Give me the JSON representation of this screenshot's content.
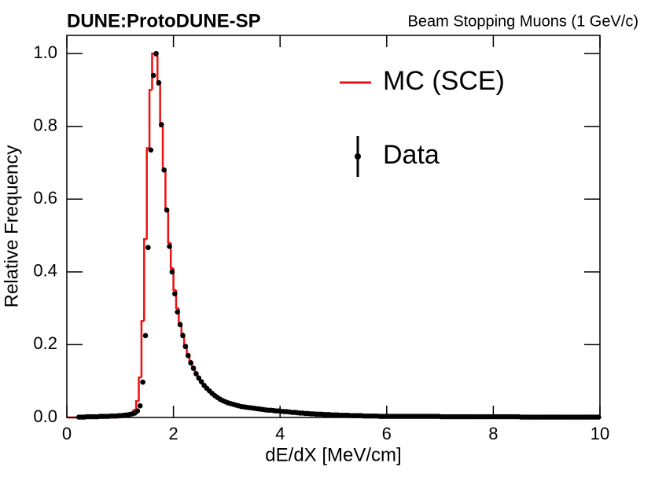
{
  "chart_data": {
    "type": "histogram",
    "title": "DUNE:ProtoDUNE-SP",
    "subtitle": "Beam Stopping Muons (1 GeV/c)",
    "x_label": "dE/dX [MeV/cm]",
    "y_label": "Relative Frequency",
    "xlim": [
      0,
      10
    ],
    "ylim": [
      0,
      1.05
    ],
    "xticks": [
      0,
      2,
      4,
      6,
      8,
      10
    ],
    "yticks": [
      {
        "value": 0,
        "label": "0.0"
      },
      0.2,
      0.4,
      0.6,
      0.8,
      {
        "value": 1,
        "label": "1.0"
      }
    ],
    "legend": "upper right",
    "bins": [
      0,
      0.05,
      0.1,
      0.15,
      0.2,
      0.25,
      0.3,
      0.35,
      0.4,
      0.45,
      0.5,
      0.55,
      0.6,
      0.65,
      0.7,
      0.75,
      0.8,
      0.85,
      0.9,
      0.95,
      1,
      1.05,
      1.1,
      1.15,
      1.2,
      1.25,
      1.3,
      1.35,
      1.4,
      1.45,
      1.5,
      1.55,
      1.6,
      1.65,
      1.7,
      1.75,
      1.8,
      1.85,
      1.9,
      1.95,
      2,
      2.05,
      2.1,
      2.15,
      2.2,
      2.25,
      2.3,
      2.35,
      2.4,
      2.45,
      2.5,
      2.55,
      2.6,
      2.65,
      2.7,
      2.75,
      2.8,
      2.85,
      2.9,
      2.95,
      3,
      3.05,
      3.1,
      3.15,
      3.2,
      3.25,
      3.3,
      3.35,
      3.4,
      3.45,
      3.5,
      3.55,
      3.6,
      3.65,
      3.7,
      3.75,
      3.8,
      3.85,
      3.9,
      3.95,
      4,
      4.05,
      4.1,
      4.15,
      4.2,
      4.25,
      4.3,
      4.35,
      4.4,
      4.45,
      4.5,
      4.55,
      4.6,
      4.65,
      4.7,
      4.75,
      4.8,
      4.85,
      4.9,
      4.95,
      5,
      5.05,
      5.1,
      5.15,
      5.2,
      5.25,
      5.3,
      5.35,
      5.4,
      5.45,
      5.5,
      5.55,
      5.6,
      5.65,
      5.7,
      5.75,
      5.8,
      5.85,
      5.9,
      5.95,
      6,
      6.05,
      6.1,
      6.15,
      6.2,
      6.25,
      6.3,
      6.35,
      6.4,
      6.45,
      6.5,
      6.55,
      6.6,
      6.65,
      6.7,
      6.75,
      6.8,
      6.85,
      6.9,
      6.95,
      7,
      7.05,
      7.1,
      7.15,
      7.2,
      7.25,
      7.3,
      7.35,
      7.4,
      7.45,
      7.5,
      7.55,
      7.6,
      7.65,
      7.7,
      7.75,
      7.8,
      7.85,
      7.9,
      7.95,
      8,
      8.05,
      8.1,
      8.15,
      8.2,
      8.25,
      8.3,
      8.35,
      8.4,
      8.45,
      8.5,
      8.55,
      8.6,
      8.65,
      8.7,
      8.75,
      8.8,
      8.85,
      8.9,
      8.95,
      9,
      9.05,
      9.1,
      9.15,
      9.2,
      9.25,
      9.3,
      9.35,
      9.4,
      9.45,
      9.5,
      9.55,
      9.6,
      9.65,
      9.7,
      9.75,
      9.8,
      9.85,
      9.9,
      9.95,
      10
    ],
    "series": [
      {
        "name": "MC (SCE)",
        "color": "#ee1111",
        "style": "step",
        "values": [
          0,
          0,
          0,
          0,
          0,
          0,
          0,
          0,
          0,
          0,
          0,
          0,
          0,
          0,
          0,
          0,
          0,
          0,
          0,
          0,
          0.003,
          0.004,
          0.006,
          0.008,
          0.012,
          0.02,
          0.045,
          0.11,
          0.265,
          0.49,
          0.74,
          0.9,
          1.0,
          0.995,
          0.915,
          0.8,
          0.68,
          0.57,
          0.48,
          0.41,
          0.35,
          0.3,
          0.26,
          0.23,
          0.2,
          0.175,
          0.155,
          0.14,
          0.125,
          0.113,
          0.102,
          0.092,
          0.084,
          0.077,
          0.07,
          0.064,
          0.059,
          0.054,
          0.05,
          0.047,
          0.042,
          0.04,
          0.038,
          0.036,
          0.034,
          0.032,
          0.031,
          0.03,
          0.028,
          0.027,
          0.026,
          0.025,
          0.024,
          0.023,
          0.022,
          0.021,
          0.021,
          0.02,
          0.019,
          0.019,
          0.018,
          0.017,
          0.016,
          0.015,
          0.015,
          0.014,
          0.013,
          0.013,
          0.012,
          0.012,
          0.011,
          0.011,
          0.01,
          0.01,
          0.009,
          0.009,
          0.008,
          0.008,
          0.008,
          0.007,
          0.007,
          0.007,
          0.006,
          0.006,
          0.006,
          0.006,
          0.005,
          0.005,
          0.005,
          0.005,
          0.005,
          0.004,
          0.004,
          0.004,
          0.004,
          0.004,
          0.004,
          0.003,
          0.003,
          0.003,
          0.003,
          0.003,
          0.003,
          0.003,
          0.003,
          0.003,
          0.003,
          0.003,
          0.003,
          0.003,
          0.003,
          0.003,
          0.003,
          0.003,
          0.003,
          0.003,
          0.003,
          0.003,
          0.003,
          0.003,
          0.002,
          0.002,
          0.002,
          0.002,
          0.002,
          0.002,
          0.002,
          0.002,
          0.002,
          0.002,
          0.002,
          0.002,
          0.002,
          0.002,
          0.002,
          0.002,
          0.002,
          0.002,
          0.002,
          0.002,
          0.002,
          0.002,
          0.002,
          0.002,
          0.002,
          0.002,
          0.002,
          0.002,
          0.002,
          0.002,
          0.001,
          0.001,
          0.001,
          0.001,
          0.001,
          0.001,
          0.001,
          0.001,
          0.001,
          0.001,
          0.001,
          0.001,
          0.001,
          0.001,
          0.001,
          0.001,
          0.001,
          0.001,
          0.001,
          0.001,
          0.001,
          0.001,
          0.001,
          0.001,
          0.001,
          0.001,
          0.001,
          0.001,
          0.001,
          0.001
        ]
      },
      {
        "name": "Data",
        "color": "#000000",
        "style": "points",
        "values": [
          null,
          null,
          null,
          null,
          0.001,
          0.001,
          0.001,
          0.002,
          0.002,
          0.002,
          0.002,
          0.002,
          0.003,
          0.003,
          0.003,
          0.003,
          0.004,
          0.004,
          0.004,
          0.005,
          0.005,
          0.006,
          0.007,
          0.008,
          0.01,
          0.012,
          0.018,
          0.032,
          0.097,
          0.225,
          0.467,
          0.735,
          0.94,
          1.0,
          0.92,
          0.805,
          0.68,
          0.57,
          0.47,
          0.4,
          0.34,
          0.29,
          0.255,
          0.225,
          0.195,
          0.17,
          0.15,
          0.135,
          0.12,
          0.108,
          0.098,
          0.088,
          0.08,
          0.073,
          0.066,
          0.06,
          0.055,
          0.05,
          0.046,
          0.043,
          0.04,
          0.038,
          0.036,
          0.034,
          0.032,
          0.03,
          0.029,
          0.028,
          0.027,
          0.026,
          0.025,
          0.024,
          0.023,
          0.022,
          0.021,
          0.02,
          0.02,
          0.019,
          0.018,
          0.018,
          0.017,
          0.016,
          0.016,
          0.015,
          0.014,
          0.014,
          0.013,
          0.012,
          0.012,
          0.011,
          0.011,
          0.01,
          0.01,
          0.009,
          0.009,
          0.009,
          0.008,
          0.008,
          0.008,
          0.007,
          0.007,
          0.007,
          0.006,
          0.006,
          0.006,
          0.006,
          0.005,
          0.005,
          0.005,
          0.005,
          0.005,
          0.004,
          0.004,
          0.004,
          0.004,
          0.004,
          0.004,
          0.003,
          0.003,
          0.003,
          0.003,
          0.003,
          0.003,
          0.003,
          0.003,
          0.003,
          0.003,
          0.003,
          0.003,
          0.003,
          0.003,
          0.003,
          0.003,
          0.003,
          0.003,
          0.003,
          0.003,
          0.003,
          0.003,
          0.003,
          0.002,
          0.002,
          0.002,
          0.002,
          0.002,
          0.002,
          0.002,
          0.002,
          0.002,
          0.002,
          0.002,
          0.002,
          0.002,
          0.002,
          0.002,
          0.002,
          0.002,
          0.002,
          0.002,
          0.002,
          0.002,
          0.002,
          0.002,
          0.002,
          0.002,
          0.002,
          0.002,
          0.002,
          0.002,
          0.002,
          0.001,
          0.001,
          0.001,
          0.001,
          0.001,
          0.001,
          0.001,
          0.001,
          0.001,
          0.001,
          0.001,
          0.001,
          0.001,
          0.001,
          0.001,
          0.001,
          0.001,
          0.001,
          0.001,
          0.001,
          0.001,
          0.001,
          0.001,
          0.001,
          0.001,
          0.001,
          0.001,
          0.001,
          0.001,
          0.001
        ]
      }
    ]
  }
}
